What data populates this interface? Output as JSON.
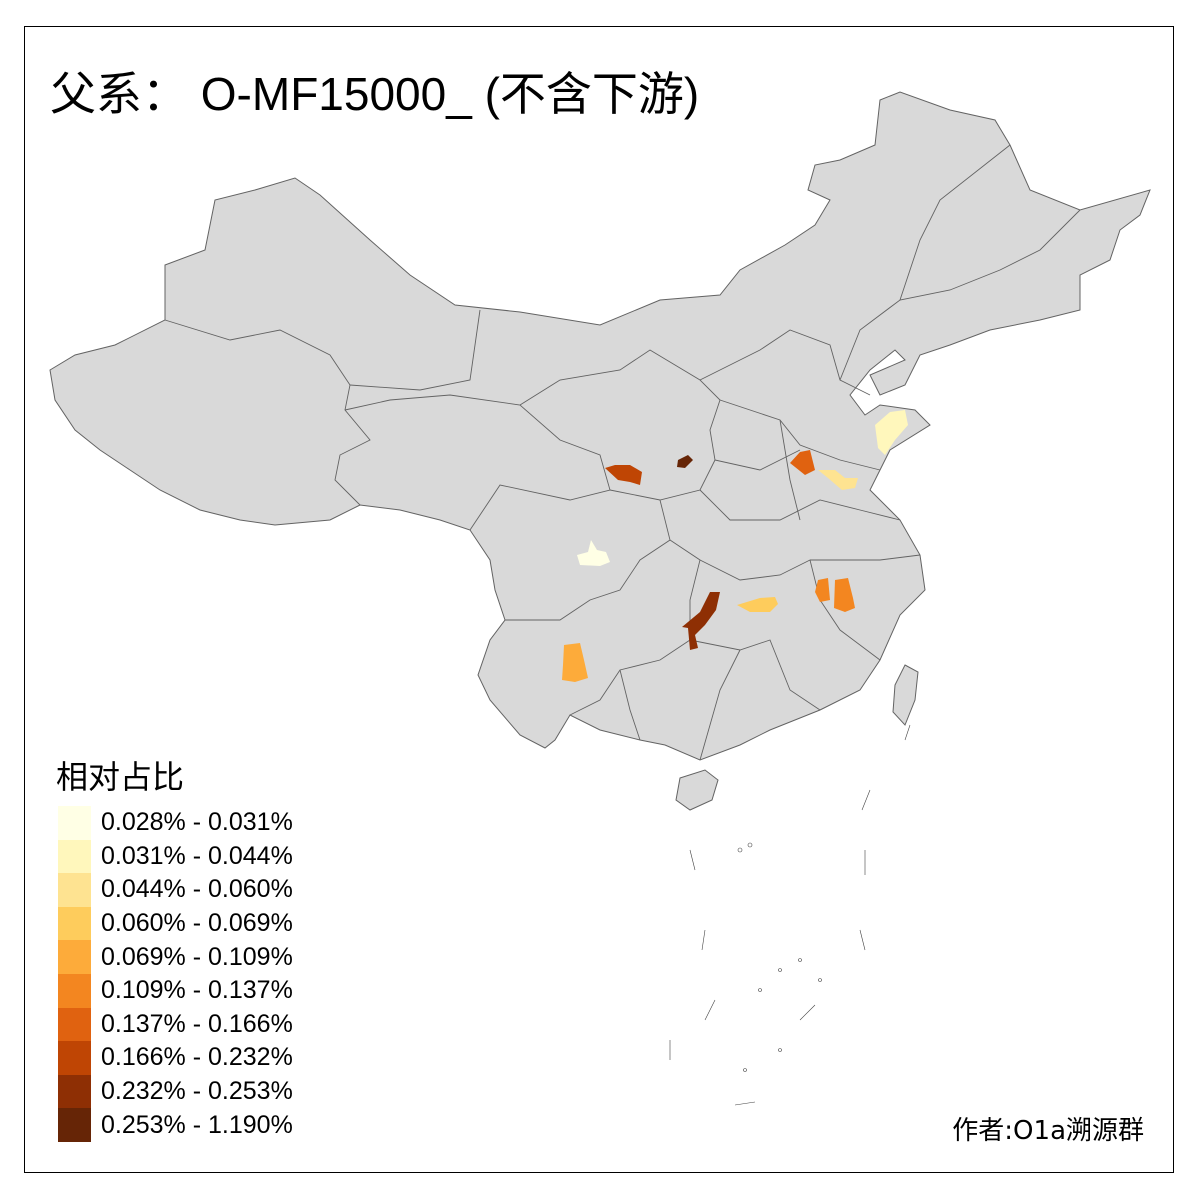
{
  "title": "父系： O-MF15000_ (不含下游)",
  "legend": {
    "title": "相对占比",
    "items": [
      {
        "label": "0.028% - 0.031%",
        "color": "#FFFFE5"
      },
      {
        "label": "0.031% - 0.044%",
        "color": "#FFF7BC"
      },
      {
        "label": "0.044% - 0.060%",
        "color": "#FEE391"
      },
      {
        "label": "0.060% - 0.069%",
        "color": "#FECC5C"
      },
      {
        "label": "0.069% - 0.109%",
        "color": "#FDAB3A"
      },
      {
        "label": "0.109% - 0.137%",
        "color": "#F38620"
      },
      {
        "label": "0.137% - 0.166%",
        "color": "#E06210"
      },
      {
        "label": "0.166% - 0.232%",
        "color": "#BF4504"
      },
      {
        "label": "0.232% - 0.253%",
        "color": "#8E2F04"
      },
      {
        "label": "0.253% - 1.190%",
        "color": "#662506"
      }
    ]
  },
  "map": {
    "base_fill": "#D9D9D9",
    "border_color": "#636363"
  },
  "highlighted_regions": [
    {
      "class": 0
    },
    {
      "class": 1
    },
    {
      "class": 2
    },
    {
      "class": 3
    },
    {
      "class": 4
    },
    {
      "class": 5
    },
    {
      "class": 5
    },
    {
      "class": 6
    },
    {
      "class": 7
    },
    {
      "class": 8
    },
    {
      "class": 9
    }
  ],
  "credit": "作者:O1a溯源群"
}
